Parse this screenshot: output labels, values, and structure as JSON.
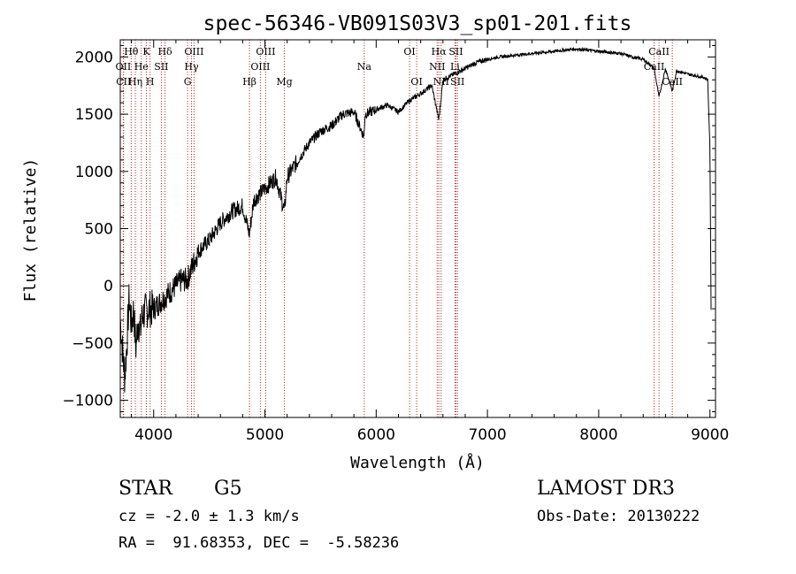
{
  "chart_data": {
    "type": "line",
    "title": "spec-56346-VB091S03V3_sp01-201.fits",
    "xlabel": "Wavelength (Å)",
    "ylabel": "Flux (relative)",
    "xlim": [
      3700,
      9050
    ],
    "ylim": [
      -1150,
      2150
    ],
    "x_ticks": [
      4000,
      5000,
      6000,
      7000,
      8000,
      9000
    ],
    "y_ticks": [
      -1000,
      -500,
      0,
      500,
      1000,
      1500,
      2000
    ],
    "grid": false,
    "legend": "none",
    "series": [
      {
        "name": "flux",
        "x": [
          3700,
          3720,
          3740,
          3760,
          3780,
          3800,
          3820,
          3840,
          3860,
          3880,
          3900,
          3950,
          4000,
          4050,
          4100,
          4150,
          4200,
          4250,
          4300,
          4340,
          4400,
          4500,
          4600,
          4700,
          4800,
          4860,
          4900,
          5000,
          5100,
          5175,
          5200,
          5300,
          5400,
          5500,
          5600,
          5700,
          5800,
          5890,
          5900,
          6000,
          6100,
          6200,
          6300,
          6400,
          6500,
          6563,
          6600,
          6700,
          6800,
          6900,
          7000,
          7100,
          7200,
          7300,
          7400,
          7500,
          7600,
          7700,
          7800,
          7900,
          8000,
          8100,
          8200,
          8300,
          8400,
          8498,
          8542,
          8600,
          8662,
          8700,
          8800,
          8900,
          8950,
          8980,
          9000,
          9010
        ],
        "y": [
          -300,
          -550,
          -800,
          -500,
          -100,
          -350,
          -200,
          -550,
          -300,
          -400,
          -250,
          -200,
          -200,
          -150,
          -100,
          -50,
          0,
          50,
          50,
          150,
          300,
          400,
          550,
          650,
          700,
          450,
          750,
          850,
          950,
          650,
          950,
          1100,
          1250,
          1350,
          1400,
          1500,
          1520,
          1300,
          1500,
          1540,
          1580,
          1520,
          1620,
          1680,
          1750,
          1450,
          1800,
          1850,
          1900,
          1950,
          1980,
          2000,
          2010,
          2020,
          2030,
          2040,
          2050,
          2060,
          2070,
          2060,
          2050,
          2040,
          2030,
          2000,
          1980,
          1900,
          1650,
          1900,
          1700,
          1880,
          1850,
          1830,
          1820,
          1800,
          1200,
          -200
        ]
      }
    ],
    "annotations": [
      {
        "label": "Hθ",
        "x": 3798,
        "row": 1
      },
      {
        "label": "Hη",
        "x": 3835,
        "row": 3
      },
      {
        "label": "OII",
        "x": 3727,
        "row": 2
      },
      {
        "label": "CII",
        "x": 3730,
        "row": 3
      },
      {
        "label": "He",
        "x": 3889,
        "row": 2
      },
      {
        "label": "K",
        "x": 3934,
        "row": 1
      },
      {
        "label": "H",
        "x": 3968,
        "row": 3
      },
      {
        "label": "SII",
        "x": 4069,
        "row": 2
      },
      {
        "label": "Hδ",
        "x": 4102,
        "row": 1
      },
      {
        "label": "OIII",
        "x": 4363,
        "row": 1
      },
      {
        "label": "Hγ",
        "x": 4340,
        "row": 2
      },
      {
        "label": "G",
        "x": 4305,
        "row": 3
      },
      {
        "label": "Hβ",
        "x": 4861,
        "row": 3
      },
      {
        "label": "OIII",
        "x": 5007,
        "row": 1
      },
      {
        "label": "OIII",
        "x": 4959,
        "row": 2
      },
      {
        "label": "Mg",
        "x": 5175,
        "row": 3
      },
      {
        "label": "Na",
        "x": 5893,
        "row": 2
      },
      {
        "label": "OI",
        "x": 6300,
        "row": 1
      },
      {
        "label": "OI",
        "x": 6364,
        "row": 3
      },
      {
        "label": "Hα",
        "x": 6563,
        "row": 1
      },
      {
        "label": "SII",
        "x": 6717,
        "row": 1
      },
      {
        "label": "NII",
        "x": 6548,
        "row": 2
      },
      {
        "label": "Li",
        "x": 6708,
        "row": 2
      },
      {
        "label": "NII",
        "x": 6584,
        "row": 3
      },
      {
        "label": "SII",
        "x": 6731,
        "row": 3
      },
      {
        "label": "CaII",
        "x": 8542,
        "row": 1
      },
      {
        "label": "CaII",
        "x": 8498,
        "row": 2
      },
      {
        "label": "CaII",
        "x": 8662,
        "row": 3
      }
    ]
  },
  "info": {
    "class_label": "STAR",
    "subclass": "G5",
    "survey": "LAMOST DR3",
    "cz": "cz = -2.0 ± 1.3 km/s",
    "obs_date": "Obs-Date: 20130222",
    "radec": "RA =  91.68353, DEC =  -5.58236"
  }
}
